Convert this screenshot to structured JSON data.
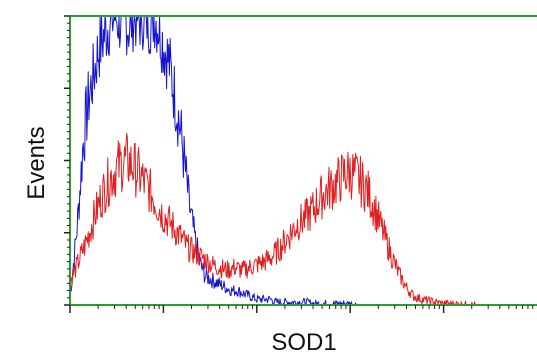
{
  "chart_data": {
    "type": "line",
    "title": "",
    "xlabel": "SOD1",
    "ylabel": "Events",
    "x_scale": "log",
    "xlim": [
      1,
      100000
    ],
    "ylim": [
      0,
      100
    ],
    "grid": false,
    "legend": "none",
    "axis_color": "#2e9c2e",
    "series": [
      {
        "color": "#1414cc",
        "x": [
          1,
          1.2,
          1.4,
          1.6,
          1.8,
          2.0,
          2.3,
          2.6,
          3.0,
          3.4,
          3.8,
          4.3,
          4.8,
          5.5,
          6.2,
          7.0,
          8.0,
          9.0,
          10,
          11.5,
          13,
          15,
          17,
          19,
          22,
          25,
          28,
          32,
          36,
          41,
          47,
          54,
          62,
          72,
          85,
          100,
          120,
          140,
          160,
          190,
          220,
          260,
          300,
          350,
          400,
          500,
          600,
          700,
          800,
          900,
          1000,
          1200
        ],
        "y": [
          2,
          28,
          58,
          72,
          80,
          88,
          93,
          97,
          100,
          98,
          100,
          96,
          100,
          99,
          100,
          98,
          100,
          96,
          90,
          84,
          74,
          62,
          48,
          34,
          22,
          14,
          10,
          9,
          8,
          7,
          6,
          5,
          5,
          4,
          3,
          2,
          2,
          2,
          1,
          1,
          1,
          1,
          1,
          1,
          0.5,
          0.5,
          0.5,
          0.5,
          0.5,
          0.5,
          0.5,
          0
        ]
      },
      {
        "color": "#e02020",
        "x": [
          1,
          1.2,
          1.5,
          1.8,
          2.2,
          2.7,
          3.3,
          4.0,
          4.8,
          5.8,
          7.0,
          8.5,
          10,
          12,
          15,
          18,
          22,
          27,
          33,
          40,
          48,
          58,
          70,
          85,
          100,
          120,
          150,
          180,
          220,
          270,
          330,
          400,
          480,
          580,
          700,
          850,
          1000,
          1200,
          1500,
          1800,
          2200,
          2700,
          3300,
          4000,
          4800,
          5800,
          7000,
          8500,
          10000,
          12000,
          15000,
          18000,
          22000
        ],
        "y": [
          8,
          14,
          22,
          30,
          38,
          44,
          48,
          50,
          48,
          44,
          40,
          35,
          31,
          28,
          24,
          20,
          18,
          16,
          14,
          13,
          12,
          13,
          12,
          13,
          14,
          15,
          17,
          20,
          24,
          28,
          30,
          33,
          37,
          40,
          42,
          45,
          46,
          44,
          40,
          34,
          26,
          18,
          11,
          6,
          3,
          2,
          1.5,
          1,
          0.5,
          0.5,
          0.3,
          0.2,
          0
        ]
      }
    ]
  }
}
